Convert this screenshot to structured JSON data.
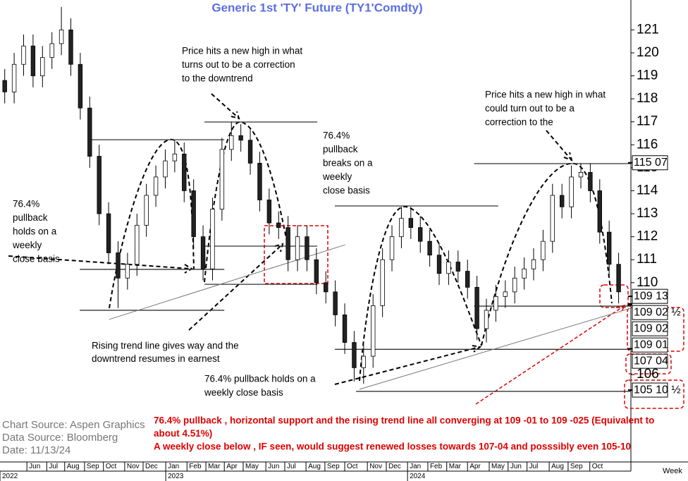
{
  "chart_data": {
    "type": "candlestick",
    "title": "Generic  1st  'TY'  Future  (TY1'Comdty)",
    "x": [
      1,
      3,
      5,
      7,
      9,
      11,
      13,
      15,
      17,
      19,
      21,
      23,
      25,
      27,
      29,
      31,
      33,
      35,
      37,
      39,
      41,
      43,
      45,
      47,
      49,
      51,
      53,
      55,
      57,
      59,
      61,
      63,
      65,
      67,
      69,
      71,
      73,
      75,
      77,
      79,
      81,
      83,
      85,
      87,
      89,
      91,
      93,
      95,
      97,
      99,
      101,
      103,
      105,
      107,
      109,
      111,
      113,
      115,
      117,
      119,
      121,
      123,
      125,
      127,
      129,
      131
    ],
    "open": [
      118.8,
      118.3,
      119.5,
      120.3,
      119.0,
      119.8,
      120.4,
      121.0,
      119.5,
      117.6,
      115.5,
      113.0,
      111.3,
      110.2,
      110.8,
      112.5,
      113.8,
      114.6,
      115.3,
      115.6,
      114.0,
      112.0,
      110.6,
      113.2,
      115.8,
      116.4,
      116.2,
      115.2,
      113.6,
      112.6,
      112.4,
      111.0,
      112.0,
      111.0,
      110.0,
      109.6,
      108.6,
      107.4,
      106.3,
      106.8,
      109.0,
      111.0,
      112.0,
      112.8,
      112.4,
      111.8,
      111.2,
      110.4,
      110.9,
      110.5,
      109.8,
      108.0,
      108.8,
      109.4,
      109.6,
      110.2,
      110.6,
      111.0,
      111.8,
      113.8,
      113.3,
      114.6,
      114.8,
      114.0,
      112.2,
      110.8
    ],
    "high": [
      119.3,
      120.0,
      120.8,
      120.8,
      120.3,
      120.9,
      122.0,
      121.5,
      120.0,
      118.1,
      116.0,
      113.5,
      111.8,
      111.3,
      113.0,
      114.3,
      115.1,
      115.8,
      116.2,
      116.1,
      114.5,
      112.5,
      113.7,
      116.3,
      117.0,
      116.9,
      116.7,
      115.7,
      114.1,
      113.1,
      112.9,
      112.5,
      112.5,
      111.5,
      110.5,
      110.1,
      109.1,
      107.9,
      107.3,
      109.5,
      111.5,
      112.5,
      113.3,
      113.3,
      112.9,
      112.3,
      111.7,
      111.4,
      111.4,
      111.0,
      110.3,
      109.3,
      109.9,
      110.1,
      110.7,
      111.1,
      111.5,
      112.3,
      114.3,
      114.3,
      115.1,
      115.2,
      115.2,
      114.5,
      112.7,
      111.3
    ],
    "low": [
      117.8,
      117.8,
      119.0,
      118.5,
      118.5,
      119.3,
      119.9,
      119.0,
      117.1,
      115.0,
      112.5,
      110.8,
      108.9,
      109.7,
      110.3,
      112.0,
      113.3,
      114.1,
      114.8,
      113.5,
      111.5,
      110.1,
      110.1,
      112.7,
      115.3,
      115.7,
      114.7,
      113.1,
      112.1,
      111.9,
      110.5,
      110.5,
      110.5,
      109.5,
      109.1,
      108.1,
      106.9,
      105.7,
      105.6,
      106.3,
      108.5,
      110.5,
      111.5,
      111.9,
      111.3,
      110.7,
      109.9,
      109.9,
      110.0,
      109.3,
      107.5,
      107.4,
      108.3,
      108.9,
      109.1,
      109.7,
      110.1,
      110.5,
      111.3,
      112.8,
      112.8,
      114.1,
      113.5,
      111.7,
      110.3,
      109.1
    ],
    "close": [
      118.3,
      119.5,
      120.3,
      119.0,
      119.8,
      120.4,
      121.0,
      119.5,
      117.6,
      115.5,
      113.0,
      111.3,
      110.2,
      110.8,
      112.5,
      113.8,
      114.6,
      115.3,
      115.6,
      114.0,
      112.0,
      110.6,
      113.2,
      115.8,
      116.4,
      116.2,
      115.2,
      113.6,
      112.6,
      112.4,
      111.0,
      112.0,
      111.0,
      110.0,
      109.6,
      108.6,
      107.4,
      106.3,
      106.8,
      109.0,
      111.0,
      112.0,
      112.8,
      112.4,
      111.8,
      111.2,
      110.4,
      110.9,
      110.5,
      109.8,
      108.0,
      108.8,
      109.4,
      109.6,
      110.2,
      110.6,
      111.0,
      111.8,
      113.8,
      113.3,
      114.6,
      114.8,
      114.0,
      112.2,
      110.8,
      109.6
    ],
    "xlim": [
      0,
      133.6
    ],
    "ylim": [
      102.2,
      122.3
    ],
    "yticks": [
      106,
      110,
      111,
      112,
      113,
      114,
      115,
      116,
      117,
      118,
      119,
      120,
      121
    ],
    "xticks": [
      {
        "value": 5.7,
        "label": "Jun"
      },
      {
        "value": 9.9,
        "label": "Jul"
      },
      {
        "value": 13.7,
        "label": "Aug"
      },
      {
        "value": 17.9,
        "label": "Sep"
      },
      {
        "value": 21.9,
        "label": "Oct"
      },
      {
        "value": 26.4,
        "label": "Nov"
      },
      {
        "value": 30.3,
        "label": "Dec"
      },
      {
        "value": 35.1,
        "label": "Jan"
      },
      {
        "value": 39.6,
        "label": "Feb"
      },
      {
        "value": 43.6,
        "label": "Mar"
      },
      {
        "value": 47.5,
        "label": "Apr"
      },
      {
        "value": 51.5,
        "label": "May"
      },
      {
        "value": 56.3,
        "label": "Jun"
      },
      {
        "value": 60.3,
        "label": "Jul"
      },
      {
        "value": 64.8,
        "label": "Aug"
      },
      {
        "value": 68.8,
        "label": "Sep"
      },
      {
        "value": 73,
        "label": "Oct"
      },
      {
        "value": 77.8,
        "label": "Nov"
      },
      {
        "value": 81.8,
        "label": "Dec"
      },
      {
        "value": 86.3,
        "label": "Jan"
      },
      {
        "value": 90.6,
        "label": "Feb"
      },
      {
        "value": 94.6,
        "label": "Mar"
      },
      {
        "value": 99,
        "label": "Apr"
      },
      {
        "value": 103.6,
        "label": "May"
      },
      {
        "value": 107.6,
        "label": "Jun"
      },
      {
        "value": 111.6,
        "label": "Jul"
      },
      {
        "value": 116.3,
        "label": "Aug"
      },
      {
        "value": 120.3,
        "label": "Sep"
      },
      {
        "value": 124.9,
        "label": "Oct"
      }
    ],
    "year_ticks": [
      {
        "value": 0,
        "label": "2022"
      },
      {
        "value": 35.1,
        "label": "2023"
      },
      {
        "value": 86.3,
        "label": "2024"
      }
    ],
    "x_label": "Week",
    "levels": [
      {
        "y": 116.22,
        "x": [
          19.1,
          47.5
        ]
      },
      {
        "y": 110.58,
        "x": [
          16.9,
          47.5
        ]
      },
      {
        "y": 108.8,
        "x": [
          16.9,
          47.5
        ]
      },
      {
        "y": 116.99,
        "x": [
          43.3,
          67.2
        ]
      },
      {
        "y": 111.59,
        "x": [
          43.3,
          67.2
        ]
      },
      {
        "y": 109.93,
        "x": [
          43.3,
          67.2
        ]
      },
      {
        "y": 113.34,
        "x": [
          70.9,
          105.5
        ]
      },
      {
        "y": 107.1,
        "x": [
          70.9,
          133.6
        ]
      },
      {
        "y": 105.27,
        "x": [
          75.4,
          133.6
        ]
      },
      {
        "y": 115.18,
        "x": [
          100.4,
          133.6
        ]
      },
      {
        "y": 108.98,
        "x": [
          100.4,
          133.6
        ]
      }
    ],
    "trend_lines": [
      {
        "x": [
          23.1,
          73.1
        ],
        "y": [
          108.4,
          111.65
        ]
      },
      {
        "x": [
          76.1,
          133.6
        ],
        "y": [
          105.36,
          108.89
        ]
      }
    ],
    "price_labels": [
      {
        "value": 115.21875,
        "label": "115 07"
      },
      {
        "value": 109.40625,
        "label": "109 13"
      },
      {
        "value": 109.078125,
        "label": "109 02 ½"
      },
      {
        "value": 109.0625,
        "label": "109 02"
      },
      {
        "value": 109.03125,
        "label": "109 01"
      },
      {
        "value": 107.125,
        "label": "107 04"
      },
      {
        "value": 105.328125,
        "label": "105 10 ½"
      }
    ],
    "annotations": [
      {
        "lines": [
          "Price hits a new high in what",
          "turns out to be a correction",
          "to the downtrend"
        ]
      },
      {
        "lines": [
          "Price hits a new high in what",
          "could turn out to be a",
          "correction to the"
        ]
      },
      {
        "lines": [
          "76.4%",
          "pullback",
          "breaks  on a",
          "weekly",
          "close basis"
        ]
      },
      {
        "lines": [
          "76.4%",
          "pullback",
          "holds on a",
          "weekly",
          "close basis"
        ]
      },
      {
        "lines": [
          "Rising trend line gives way and the",
          "downtrend resumes in earnest"
        ]
      },
      {
        "lines": [
          "76.4% pullback holds on a",
          "weekly close basis"
        ]
      }
    ],
    "commentary": [
      "76.4% pullback , horizontal support and the rising trend line all converging at 109 -01 to 109 -025 (Equivalent to",
      "about 4.51%)",
      "A weekly close below , IF seen, would suggest renewed losses towards 107-04 and posssibly even 105-10"
    ],
    "source": [
      "Chart Source:  Aspen Graphics",
      "Data  Source:  Bloomberg",
      "Date:  11/13/24"
    ]
  }
}
